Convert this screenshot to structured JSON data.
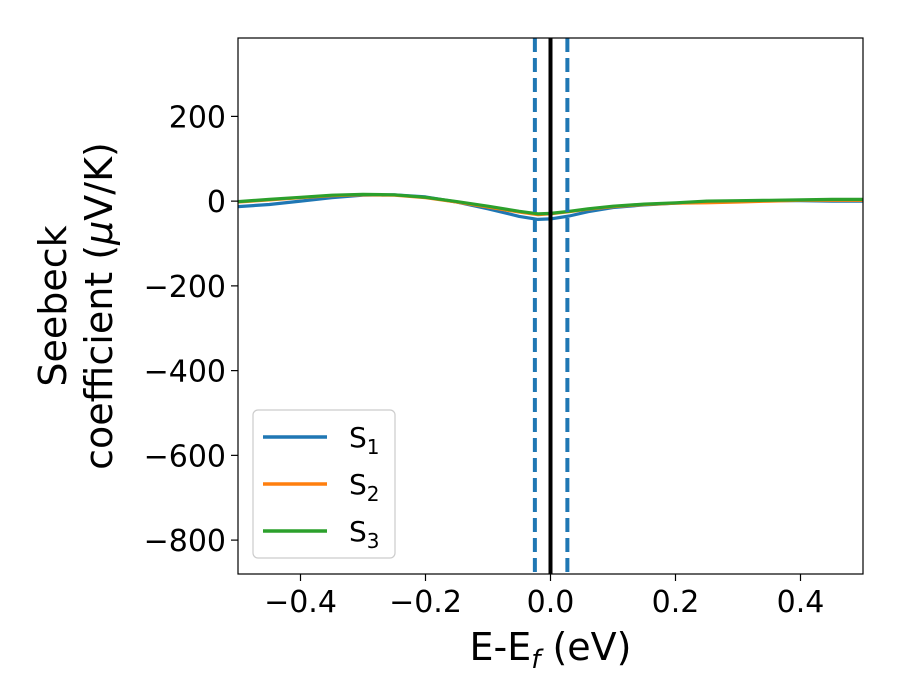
{
  "chart_data": {
    "type": "line",
    "xlabel": "E-E",
    "xlabel_sub": "f",
    "xlabel_unit": " (eV)",
    "ylabel_line1": "Seebeck",
    "ylabel_line2": "coefficient  (",
    "ylabel_mu": "μ",
    "ylabel_unit": "V/K)",
    "xlim": [
      -0.5,
      0.5
    ],
    "ylim": [
      -880,
      385
    ],
    "xticks": [
      -0.4,
      -0.2,
      0.0,
      0.2,
      0.4
    ],
    "xtick_labels": [
      "−0.4",
      "−0.2",
      "0.0",
      "0.2",
      "0.4"
    ],
    "yticks": [
      200,
      0,
      -200,
      -400,
      -600,
      -800
    ],
    "ytick_labels": [
      "200",
      "0",
      "−200",
      "−400",
      "−600",
      "−800"
    ],
    "grid": false,
    "legend_position": "lower-left",
    "vlines": [
      {
        "x": 0.0,
        "style": "solid",
        "color": "#000000"
      },
      {
        "x": -0.025,
        "style": "dashed",
        "color": "#1f77b4"
      },
      {
        "x": 0.027,
        "style": "dashed",
        "color": "#1f77b4"
      }
    ],
    "series": [
      {
        "name": "S",
        "sub": "1",
        "color": "#1f77b4",
        "x": [
          -0.5,
          -0.45,
          -0.4,
          -0.35,
          -0.3,
          -0.25,
          -0.2,
          -0.15,
          -0.1,
          -0.05,
          -0.02,
          0.0,
          0.03,
          0.06,
          0.1,
          0.15,
          0.2,
          0.25,
          0.3,
          0.35,
          0.4,
          0.45,
          0.5
        ],
        "y": [
          -13,
          -8,
          0,
          8,
          14,
          15,
          10,
          -2,
          -18,
          -36,
          -43,
          -42,
          -35,
          -25,
          -15,
          -9,
          -5,
          -2,
          0,
          1,
          1,
          0,
          0
        ]
      },
      {
        "name": "S",
        "sub": "2",
        "color": "#ff7f0e",
        "x": [
          -0.5,
          -0.45,
          -0.4,
          -0.35,
          -0.3,
          -0.25,
          -0.2,
          -0.15,
          -0.1,
          -0.05,
          -0.02,
          0.0,
          0.03,
          0.06,
          0.1,
          0.15,
          0.2,
          0.25,
          0.3,
          0.35,
          0.4,
          0.45,
          0.5
        ],
        "y": [
          -2,
          3,
          8,
          13,
          15,
          14,
          8,
          -2,
          -14,
          -26,
          -32,
          -30,
          -25,
          -19,
          -13,
          -8,
          -5,
          -4,
          -2,
          0,
          2,
          2,
          2
        ]
      },
      {
        "name": "S",
        "sub": "3",
        "color": "#2ca02c",
        "x": [
          -0.5,
          -0.45,
          -0.4,
          -0.35,
          -0.3,
          -0.25,
          -0.2,
          -0.15,
          -0.1,
          -0.05,
          -0.02,
          0.0,
          0.03,
          0.06,
          0.1,
          0.15,
          0.2,
          0.25,
          0.3,
          0.35,
          0.4,
          0.45,
          0.5
        ],
        "y": [
          -1,
          4,
          9,
          14,
          16,
          15,
          9,
          -1,
          -12,
          -24,
          -30,
          -29,
          -24,
          -18,
          -12,
          -7,
          -4,
          0,
          1,
          2,
          3,
          4,
          4
        ]
      }
    ]
  }
}
